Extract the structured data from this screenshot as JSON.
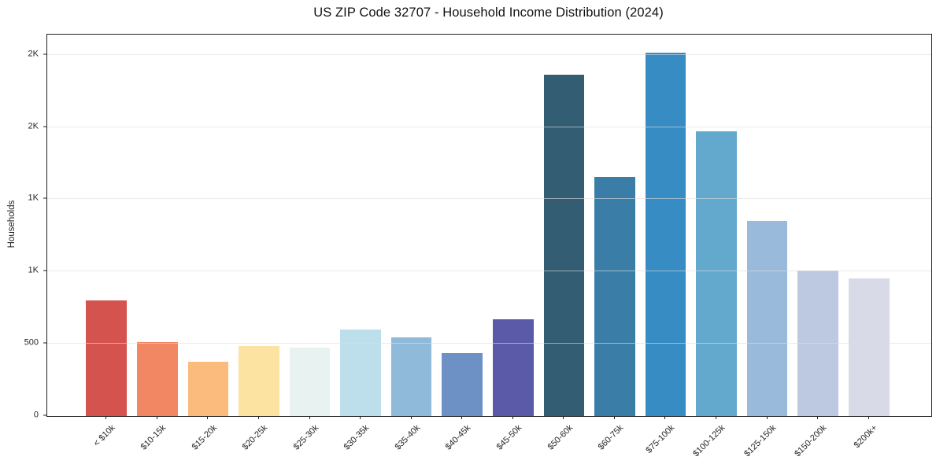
{
  "chart_data": {
    "type": "bar",
    "title": "US ZIP Code 32707 - Household Income Distribution (2024)",
    "xlabel": "",
    "ylabel": "Households",
    "categories": [
      "< $10k",
      "$10-15k",
      "$15-20k",
      "$20-25k",
      "$25-30k",
      "$30-35k",
      "$35-40k",
      "$40-45k",
      "$45-50k",
      "$50-60k",
      "$60-75k",
      "$75-100k",
      "$100-125k",
      "$125-150k",
      "$150-200k",
      "$200k+"
    ],
    "values": [
      800,
      512,
      374,
      482,
      476,
      598,
      547,
      438,
      669,
      2362,
      1656,
      2516,
      1972,
      1349,
      1009,
      953
    ],
    "bar_colors": [
      "#d5534e",
      "#f28764",
      "#fbbb7c",
      "#fce3a2",
      "#e7f2f1",
      "#bddfec",
      "#90bada",
      "#6d90c5",
      "#5b5aa9",
      "#335d72",
      "#3a7ea8",
      "#368cc3",
      "#63a8cd",
      "#9abadb",
      "#bcc9e1",
      "#d9dae8"
    ],
    "ylim": [
      0,
      2640
    ],
    "yticks": [
      {
        "value": 0,
        "label": "0"
      },
      {
        "value": 500,
        "label": "500"
      },
      {
        "value": 1000,
        "label": "1K"
      },
      {
        "value": 1500,
        "label": "1K"
      },
      {
        "value": 2000,
        "label": "2K"
      },
      {
        "value": 2500,
        "label": "2K"
      }
    ],
    "grid": "horizontal",
    "legend": "none",
    "bar_width_ratio": 0.8
  },
  "colors": {
    "background": "#ffffff",
    "spine": "#222222",
    "gridline": "#e9e9e9",
    "tick_text": "#262626",
    "title_text": "#111111"
  }
}
